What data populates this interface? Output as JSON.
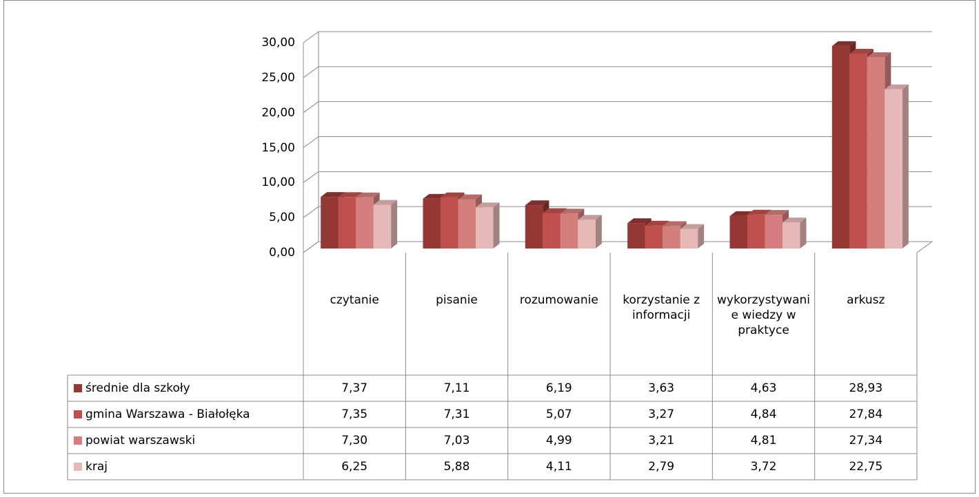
{
  "chart_data": {
    "type": "bar3d",
    "categories": [
      "czytanie",
      "pisanie",
      "rozumowanie",
      "korzystanie z informacji",
      "wykorzystywanie wiedzy w praktyce",
      "arkusz"
    ],
    "series": [
      {
        "name": "średnie dla szkoły",
        "color": "#953735",
        "values": [
          7.37,
          7.11,
          6.19,
          3.63,
          4.63,
          28.93
        ],
        "value_labels": [
          "7,37",
          "7,11",
          "6,19",
          "3,63",
          "4,63",
          "28,93"
        ]
      },
      {
        "name": "gmina Warszawa - Białołęka",
        "color": "#c0504d",
        "values": [
          7.35,
          7.31,
          5.07,
          3.27,
          4.84,
          27.84
        ],
        "value_labels": [
          "7,35",
          "7,31",
          "5,07",
          "3,27",
          "4,84",
          "27,84"
        ]
      },
      {
        "name": "powiat warszawski",
        "color": "#d47f7d",
        "values": [
          7.3,
          7.03,
          4.99,
          3.21,
          4.81,
          27.34
        ],
        "value_labels": [
          "7,30",
          "7,03",
          "4,99",
          "3,21",
          "4,81",
          "27,34"
        ]
      },
      {
        "name": "kraj",
        "color": "#e6b9b8",
        "values": [
          6.25,
          5.88,
          4.11,
          2.79,
          3.72,
          22.75
        ],
        "value_labels": [
          "6,25",
          "5,88",
          "4,11",
          "2,79",
          "3,72",
          "22,75"
        ]
      }
    ],
    "ylim": [
      0,
      30
    ],
    "yticks": [
      {
        "value": 0,
        "label": "0,00"
      },
      {
        "value": 5,
        "label": "5,00"
      },
      {
        "value": 10,
        "label": "10,00"
      },
      {
        "value": 15,
        "label": "15,00"
      },
      {
        "value": 20,
        "label": "20,00"
      },
      {
        "value": 25,
        "label": "25,00"
      },
      {
        "value": 30,
        "label": "30,00"
      }
    ],
    "grid": true
  }
}
